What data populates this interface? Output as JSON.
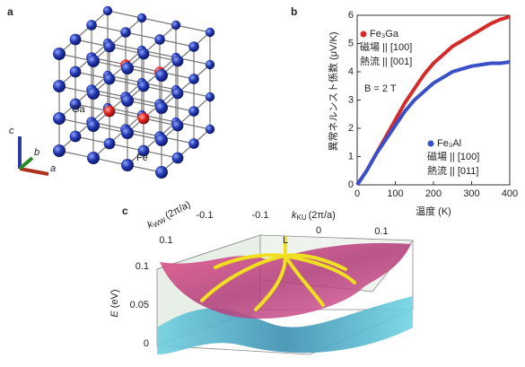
{
  "panel_a": {
    "label": "a",
    "ga": "Ga",
    "fe": "Fe",
    "axes": [
      "c",
      "b",
      "a"
    ]
  },
  "chart_data": {
    "type": "line",
    "label": "b",
    "xlabel": "温度 (K)",
    "ylabel": "異常ネルンスト係数 (μV/K)",
    "x": [
      0,
      25,
      50,
      75,
      100,
      125,
      150,
      175,
      200,
      225,
      250,
      275,
      300,
      325,
      350,
      375,
      400
    ],
    "xlim": [
      0,
      400
    ],
    "xticks": [
      0,
      100,
      200,
      300,
      400
    ],
    "ylim": [
      0,
      6
    ],
    "yticks": [
      0,
      1,
      2,
      3,
      4,
      5,
      6
    ],
    "series": [
      {
        "name": "Fe₃Ga",
        "color": "#d42a2a",
        "values": [
          0,
          0.5,
          1.1,
          1.7,
          2.3,
          2.9,
          3.4,
          3.9,
          4.3,
          4.6,
          4.9,
          5.1,
          5.3,
          5.5,
          5.7,
          5.85,
          5.95
        ],
        "notes": [
          "磁場 || [100]",
          "熱流 || [001]"
        ]
      },
      {
        "name": "Fe₃Al",
        "color": "#3a50c8",
        "values": [
          0,
          0.5,
          1.1,
          1.6,
          2.1,
          2.6,
          3.0,
          3.3,
          3.6,
          3.8,
          4.0,
          4.1,
          4.2,
          4.25,
          4.3,
          4.3,
          4.35
        ],
        "notes": [
          "磁場 || [100]",
          "熱流 || [011]"
        ]
      }
    ],
    "annotation": "B = 2 T"
  },
  "panel_c": {
    "label": "c",
    "k_ww": {
      "symbol": "k",
      "subscript": "WW",
      "unit": "(2π/a)"
    },
    "k_ku": {
      "symbol": "k",
      "subscript": "KU",
      "unit": "(2π/a)"
    },
    "k_ww_ticks": [
      -0.1,
      0.1
    ],
    "k_ku_ticks": [
      -0.1,
      0,
      0.1
    ],
    "e_axis": {
      "symbol": "E",
      "unit": "(eV)"
    },
    "e_ticks": [
      0.1,
      0.05,
      0
    ],
    "point": "L"
  }
}
